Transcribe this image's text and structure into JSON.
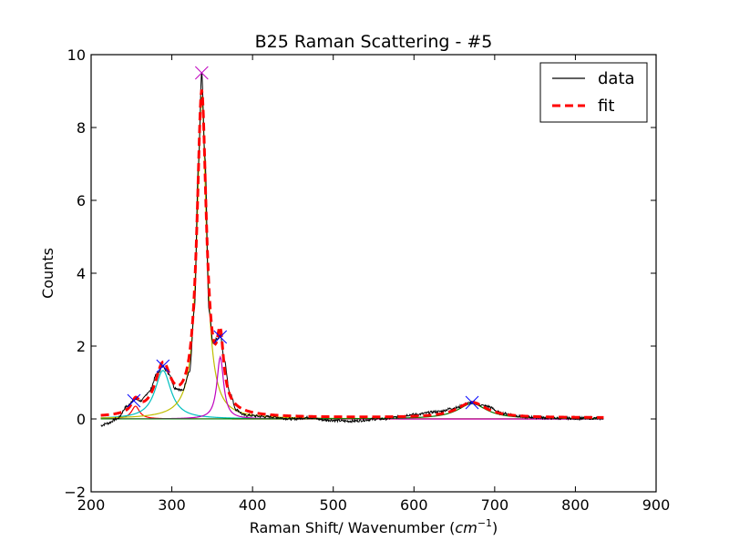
{
  "chart_data": {
    "type": "line",
    "title": "B25 Raman Scattering - #5",
    "xlabel": "Raman Shift/ Wavenumber (",
    "xlabel_unit": "cm",
    "xlabel_unit_exp": "−1",
    "xlabel_close": ")",
    "ylabel": "Counts",
    "xlim": [
      200,
      900
    ],
    "ylim": [
      -2,
      10
    ],
    "xticks": [
      200,
      300,
      400,
      500,
      600,
      700,
      800,
      900
    ],
    "yticks": [
      -2,
      0,
      2,
      4,
      6,
      8,
      10
    ],
    "grid": false,
    "legend_position": "top-right",
    "legend": [
      {
        "label": "data",
        "color": "#000000",
        "style": "solid"
      },
      {
        "label": "fit",
        "color": "#ff0000",
        "style": "dashed"
      }
    ],
    "x_range": [
      212,
      835
    ],
    "components": [
      {
        "center": 255,
        "amplitude": 0.35,
        "width": 6,
        "color": "#ff0000"
      },
      {
        "center": 289,
        "amplitude": 1.33,
        "width": 12,
        "color": "#00bfbf"
      },
      {
        "center": 337,
        "amplitude": 8.85,
        "width": 7,
        "color": "#bfbf00"
      },
      {
        "center": 360,
        "amplitude": 1.7,
        "width": 5,
        "color": "#bf00bf"
      },
      {
        "center": 672,
        "amplitude": 0.42,
        "width": 22,
        "color": "#008000"
      }
    ],
    "peak_markers": [
      {
        "x": 253,
        "y": 0.5,
        "color": "#0000ff"
      },
      {
        "x": 289,
        "y": 1.45,
        "color": "#0000ff"
      },
      {
        "x": 337,
        "y": 9.5,
        "color": "#bf00bf"
      },
      {
        "x": 360,
        "y": 2.25,
        "color": "#0000ff"
      },
      {
        "x": 672,
        "y": 0.45,
        "color": "#0000ff"
      }
    ],
    "data_anchors": [
      [
        212,
        -0.18
      ],
      [
        220,
        -0.12
      ],
      [
        232,
        0.0
      ],
      [
        245,
        0.35
      ],
      [
        253,
        0.55
      ],
      [
        262,
        0.5
      ],
      [
        272,
        0.75
      ],
      [
        282,
        1.25
      ],
      [
        289,
        1.45
      ],
      [
        296,
        1.25
      ],
      [
        304,
        0.85
      ],
      [
        313,
        0.78
      ],
      [
        322,
        1.3
      ],
      [
        328,
        3.0
      ],
      [
        333,
        7.0
      ],
      [
        337,
        9.5
      ],
      [
        341,
        7.2
      ],
      [
        346,
        3.0
      ],
      [
        351,
        2.1
      ],
      [
        356,
        2.2
      ],
      [
        360,
        2.3
      ],
      [
        365,
        1.6
      ],
      [
        372,
        0.7
      ],
      [
        380,
        0.25
      ],
      [
        390,
        0.1
      ],
      [
        420,
        0.06
      ],
      [
        450,
        0.0
      ],
      [
        470,
        0.04
      ],
      [
        490,
        -0.03
      ],
      [
        520,
        -0.06
      ],
      [
        560,
        0.0
      ],
      [
        600,
        0.12
      ],
      [
        630,
        0.2
      ],
      [
        650,
        0.3
      ],
      [
        672,
        0.45
      ],
      [
        690,
        0.35
      ],
      [
        710,
        0.15
      ],
      [
        740,
        0.05
      ],
      [
        780,
        0.02
      ],
      [
        835,
        0.02
      ]
    ]
  }
}
